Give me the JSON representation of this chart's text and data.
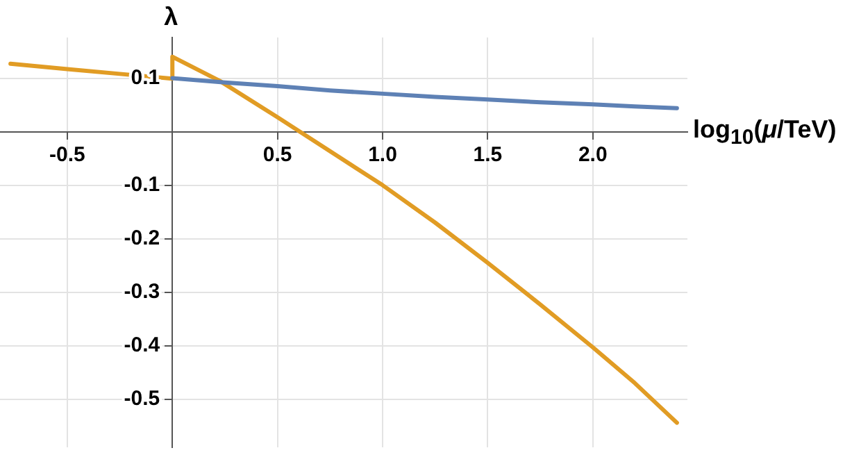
{
  "chart_data": {
    "type": "line",
    "xlabel": "log$_{10}$(μ/TeV)",
    "ylabel": "λ",
    "xlim": [
      -0.82,
      2.45
    ],
    "ylim": [
      -0.59,
      0.176
    ],
    "xticks": [
      -0.5,
      0.5,
      {
        "value": 1,
        "label": "1.0"
      },
      1.5,
      {
        "value": 2,
        "label": "2.0"
      }
    ],
    "yticks": [
      -0.5,
      -0.4,
      -0.3,
      -0.2,
      -0.1,
      0.1
    ],
    "grid": true,
    "legend": false,
    "marker": "none",
    "line_style": "solid",
    "series": [
      {
        "color": "#5e81b5",
        "x": [
          0,
          0.25,
          0.5,
          0.75,
          1.0,
          1.25,
          1.5,
          1.75,
          2.0,
          2.2,
          2.4
        ],
        "values": [
          0.1,
          0.092,
          0.085,
          0.077,
          0.071,
          0.065,
          0.06,
          0.055,
          0.051,
          0.047,
          0.044
        ]
      },
      {
        "color": "#e19c24",
        "x": [
          -0.77,
          -0.5,
          -0.25,
          0,
          0,
          0.225,
          0.5,
          0.606,
          1.0,
          1.25,
          1.5,
          1.75,
          2.0,
          2.2,
          2.4
        ],
        "values": [
          0.127,
          0.117,
          0.108,
          0.099,
          0.14,
          0.095,
          0.027,
          0,
          -0.1,
          -0.17,
          -0.245,
          -0.323,
          -0.403,
          -0.47,
          -0.544
        ]
      }
    ]
  }
}
